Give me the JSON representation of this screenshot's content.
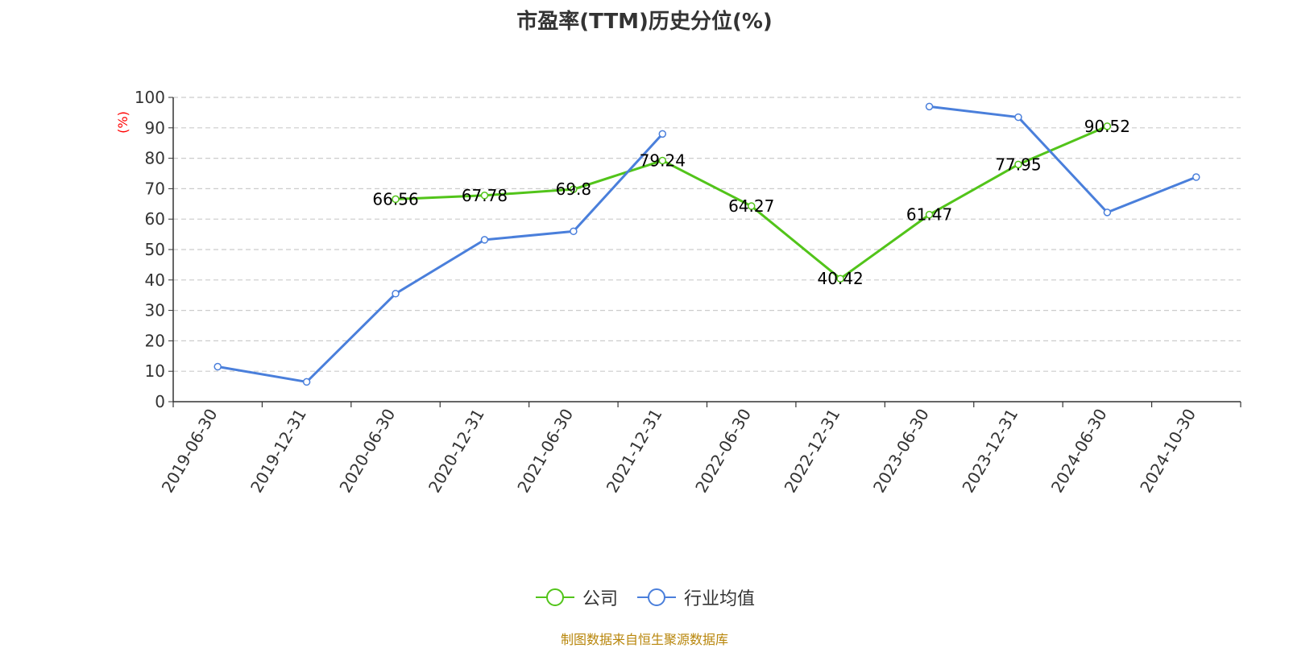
{
  "chart_data": {
    "type": "line",
    "title": "市盈率(TTM)历史分位(%)",
    "ylabel": "(%)",
    "xlabel": "",
    "ylim": [
      0,
      100
    ],
    "y_ticks": [
      "0",
      "10",
      "20",
      "30",
      "40",
      "50",
      "60",
      "70",
      "80",
      "90",
      "100"
    ],
    "categories": [
      "2019-06-30",
      "2019-12-31",
      "2020-06-30",
      "2020-12-31",
      "2021-06-30",
      "2021-12-31",
      "2022-06-30",
      "2022-12-31",
      "2023-06-30",
      "2023-12-31",
      "2024-06-30",
      "2024-10-30"
    ],
    "grid": "horizontal dashed",
    "legend_position": "bottom-center",
    "series": [
      {
        "name": "公司",
        "color": "#52c41a",
        "values": [
          null,
          null,
          66.56,
          67.78,
          69.8,
          79.24,
          64.27,
          40.42,
          61.47,
          77.95,
          90.52,
          null
        ],
        "labels": [
          "",
          "",
          "66.56",
          "67.78",
          "69.8",
          "79.24",
          "64.27",
          "40.42",
          "61.47",
          "77.95",
          "90.52",
          ""
        ]
      },
      {
        "name": "行业均值",
        "color": "#4a7fdb",
        "values": [
          11.5,
          6.5,
          35.5,
          53.2,
          56.0,
          88.0,
          null,
          null,
          97.0,
          93.5,
          62.2,
          73.8
        ],
        "labels": [
          "",
          "",
          "",
          "",
          "",
          "",
          "",
          "",
          "",
          "",
          "",
          ""
        ]
      }
    ]
  },
  "source_text": "制图数据来自恒生聚源数据库"
}
